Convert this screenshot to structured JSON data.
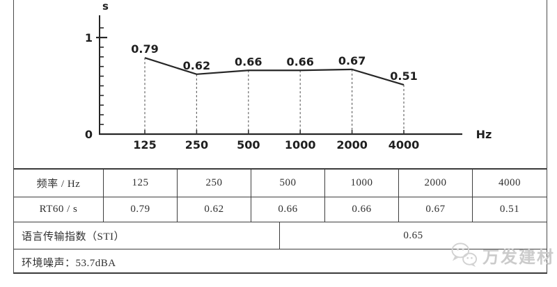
{
  "chart_data": {
    "type": "line",
    "title": "",
    "x_categories": [
      "125",
      "250",
      "500",
      "1000",
      "2000",
      "4000"
    ],
    "values": [
      0.79,
      0.62,
      0.66,
      0.66,
      0.67,
      0.51
    ],
    "point_labels": [
      "0.79",
      "0.62",
      "0.66",
      "0.66",
      "0.67",
      "0.51"
    ],
    "xlabel": "Hz",
    "ylabel": "s",
    "ylim": [
      0,
      1.2
    ],
    "ytick_minor_step": 0.1,
    "yticks_labeled": [
      {
        "value": 1,
        "label": "1"
      },
      {
        "value": 0,
        "label": "0"
      }
    ],
    "grid": "dashed vertical drop lines from each point to x-axis",
    "legend": "none",
    "line_color": "#262626"
  },
  "table": {
    "rows_grid": [
      {
        "label": "频率 / Hz",
        "values": [
          "125",
          "250",
          "500",
          "1000",
          "2000",
          "4000"
        ]
      },
      {
        "label": "RT60 / s",
        "values": [
          "0.79",
          "0.62",
          "0.66",
          "0.66",
          "0.67",
          "0.51"
        ]
      }
    ],
    "sti_row": {
      "label": "语言传输指数（STI）",
      "value": "0.65"
    },
    "noise_row": {
      "label": "环境噪声：53.7dBA"
    }
  },
  "watermark": {
    "text": "万发建材",
    "icon": "wechat-chat-bubbles-icon",
    "color": "#cbcbcb"
  }
}
